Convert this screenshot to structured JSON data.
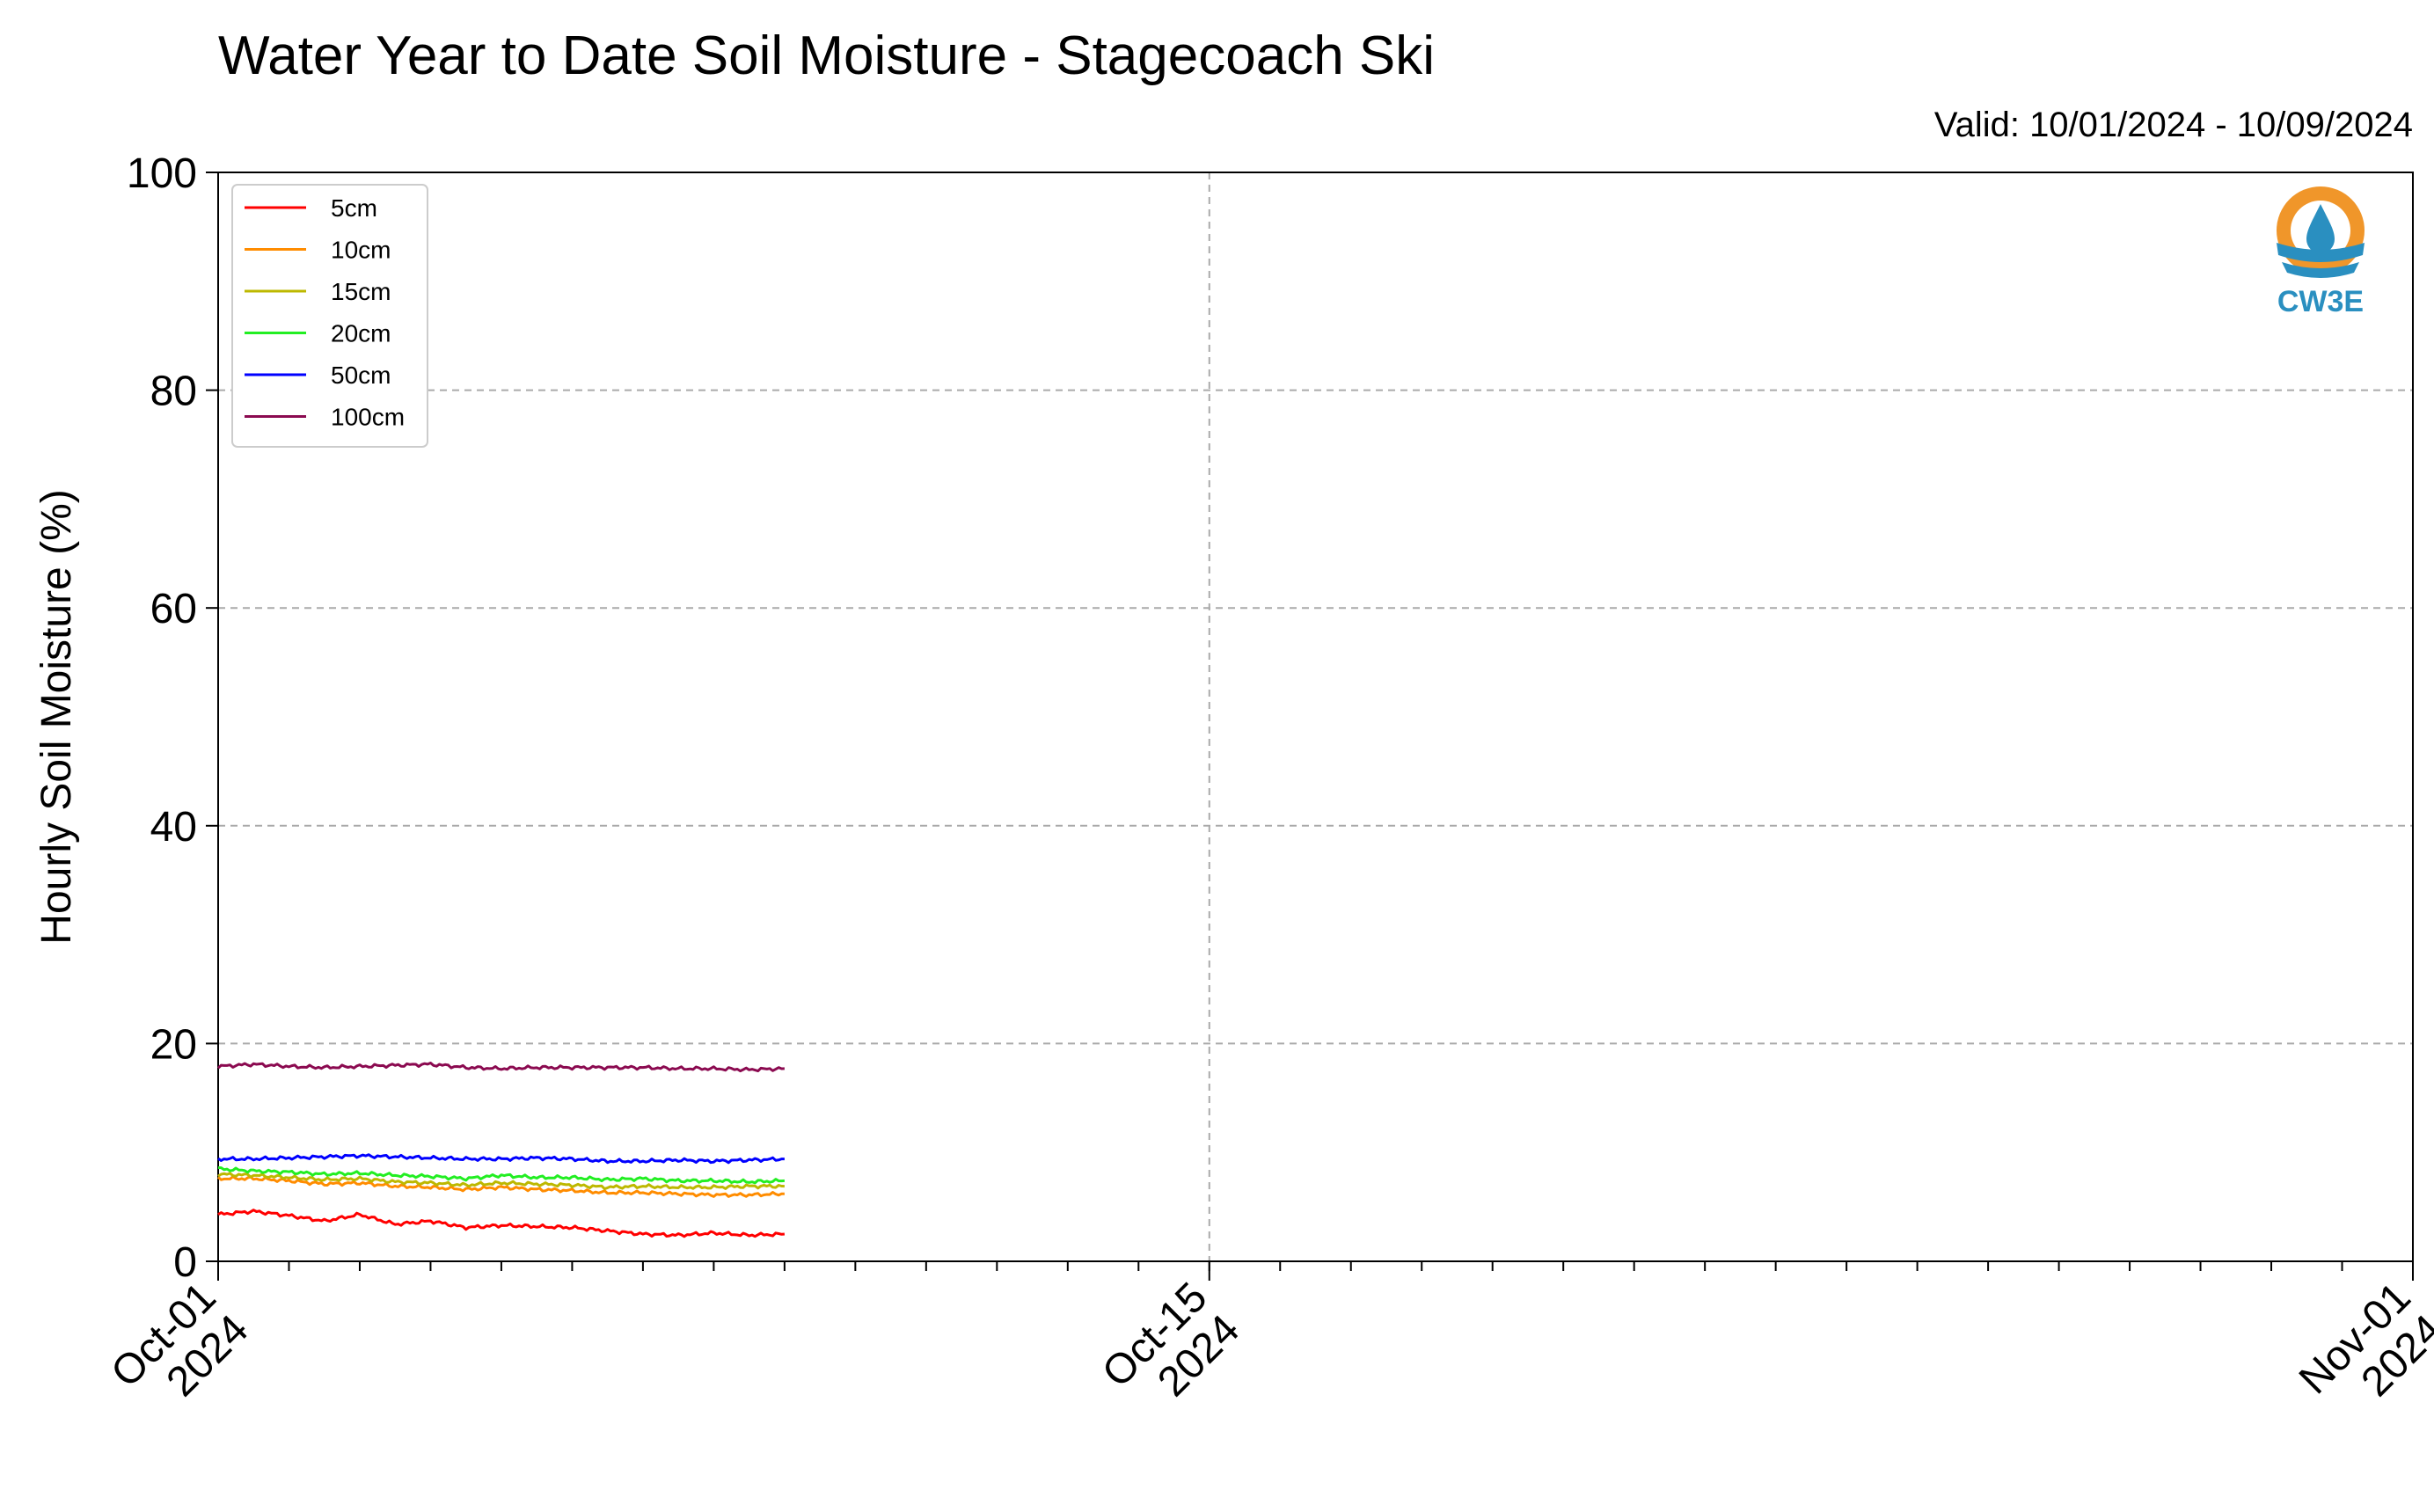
{
  "header": {
    "title": "Water Year to Date Soil Moisture - Stagecoach Ski",
    "valid": "Valid: 10/01/2024 - 10/09/2024"
  },
  "logo": {
    "text": "CW3E",
    "icon": "cw3e-logo-icon",
    "colors": {
      "orange": "#f0962a",
      "blue": "#2a8fc0"
    }
  },
  "chart_data": {
    "type": "line",
    "title": "Water Year to Date Soil Moisture - Stagecoach Ski",
    "ylabel": "Hourly Soil Moisture (%)",
    "xlabel": "",
    "ylim": [
      0,
      100
    ],
    "yticks": [
      "0",
      "20",
      "40",
      "60",
      "80",
      "100"
    ],
    "xlim": [
      "2024-10-01",
      "2024-11-01"
    ],
    "xticks": [
      {
        "date": "2024-10-01",
        "line1": "Oct-01",
        "line2": "2024"
      },
      {
        "date": "2024-10-15",
        "line1": "Oct-15",
        "line2": "2024"
      },
      {
        "date": "2024-11-01",
        "line1": "Nov-01",
        "line2": "2024"
      }
    ],
    "grid": true,
    "legend_position": "top-left",
    "x": [
      "2024-10-01",
      "2024-10-01T12",
      "2024-10-02",
      "2024-10-02T12",
      "2024-10-03",
      "2024-10-03T12",
      "2024-10-04",
      "2024-10-04T12",
      "2024-10-05",
      "2024-10-05T12",
      "2024-10-06",
      "2024-10-06T12",
      "2024-10-07",
      "2024-10-07T12",
      "2024-10-08",
      "2024-10-08T12",
      "2024-10-09"
    ],
    "series": [
      {
        "name": "5cm",
        "color": "#ff0000",
        "values": [
          4.3,
          4.6,
          4.2,
          3.7,
          4.3,
          3.4,
          3.7,
          3.1,
          3.3,
          3.2,
          3.1,
          2.8,
          2.5,
          2.4,
          2.6,
          2.4,
          2.5
        ]
      },
      {
        "name": "10cm",
        "color": "#ff8c00",
        "values": [
          7.6,
          7.6,
          7.4,
          7.1,
          7.2,
          6.9,
          6.8,
          6.6,
          6.8,
          6.6,
          6.5,
          6.3,
          6.3,
          6.2,
          6.1,
          6.1,
          6.2
        ]
      },
      {
        "name": "15cm",
        "color": "#bdb800",
        "values": [
          8.0,
          7.9,
          7.7,
          7.5,
          7.6,
          7.3,
          7.2,
          7.0,
          7.2,
          7.1,
          7.0,
          6.8,
          6.9,
          6.8,
          6.8,
          6.9,
          6.9
        ]
      },
      {
        "name": "20cm",
        "color": "#22ee22",
        "values": [
          8.5,
          8.3,
          8.2,
          8.0,
          8.1,
          7.9,
          7.8,
          7.6,
          7.9,
          7.7,
          7.7,
          7.5,
          7.6,
          7.4,
          7.4,
          7.3,
          7.4
        ]
      },
      {
        "name": "50cm",
        "color": "#0000ff",
        "values": [
          9.4,
          9.4,
          9.5,
          9.6,
          9.7,
          9.6,
          9.5,
          9.4,
          9.4,
          9.5,
          9.4,
          9.2,
          9.2,
          9.3,
          9.2,
          9.3,
          9.4
        ]
      },
      {
        "name": "100cm",
        "color": "#8b0a50",
        "values": [
          17.9,
          18.1,
          17.9,
          17.8,
          17.9,
          18.0,
          18.1,
          17.8,
          17.7,
          17.8,
          17.8,
          17.8,
          17.8,
          17.7,
          17.7,
          17.6,
          17.7
        ]
      }
    ]
  }
}
